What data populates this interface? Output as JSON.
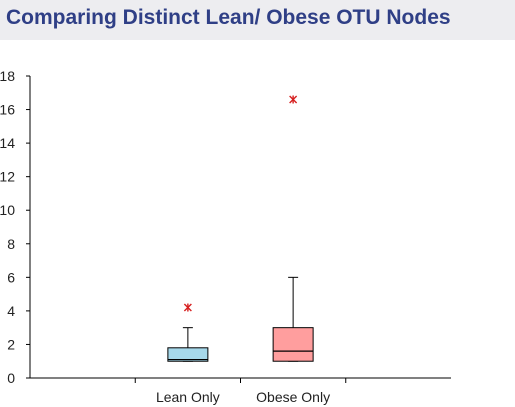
{
  "chart_data": {
    "type": "box",
    "title": "Comparing Distinct Lean/ Obese OTU Nodes",
    "categories": [
      "Lean Only",
      "Obese Only"
    ],
    "ylim": [
      0,
      18
    ],
    "yticks": [
      0,
      2,
      4,
      6,
      8,
      10,
      12,
      14,
      16,
      18
    ],
    "grid": false,
    "boxes": [
      {
        "category": "Lean Only",
        "whisker_low": 1,
        "q1": 1,
        "median": 1.1,
        "q3": 1.8,
        "whisker_high": 3,
        "outliers": [
          4.2
        ],
        "fill": "#a6d8ea"
      },
      {
        "category": "Obese Only",
        "whisker_low": 1,
        "q1": 1,
        "median": 1.6,
        "q3": 3,
        "whisker_high": 6,
        "outliers": [
          16.6
        ],
        "fill": "#ff9e9e"
      }
    ],
    "outlier_color": "#d62020",
    "outlier_marker": "asterisk"
  }
}
